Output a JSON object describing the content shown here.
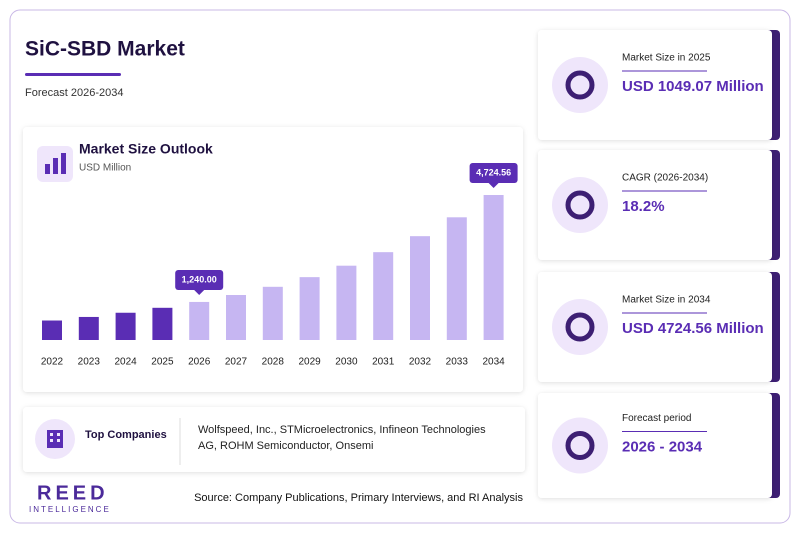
{
  "header": {
    "title": "SiC-SBD Market",
    "subtitle": "Forecast 2026-2034"
  },
  "chart_data": {
    "type": "bar",
    "title": "Market Size Outlook",
    "subtitle": "USD Million",
    "categories": [
      "2022",
      "2023",
      "2024",
      "2025",
      "2026",
      "2027",
      "2028",
      "2029",
      "2030",
      "2031",
      "2032",
      "2033",
      "2034"
    ],
    "values": [
      635,
      751,
      888,
      1049.07,
      1240,
      1466,
      1733,
      2048,
      2421,
      2862,
      3383,
      3998,
      4724.56
    ],
    "value_labels": [
      null,
      null,
      null,
      null,
      "1,240.00",
      null,
      null,
      null,
      null,
      null,
      null,
      null,
      "4,724.56"
    ],
    "colors": [
      "#5a2db4",
      "#5a2db4",
      "#5a2db4",
      "#5a2db4",
      "#c6b6f2",
      "#c6b6f2",
      "#c6b6f2",
      "#c6b6f2",
      "#c6b6f2",
      "#c6b6f2",
      "#c6b6f2",
      "#c6b6f2",
      "#c6b6f2"
    ],
    "label_color": "#5a2db4"
  },
  "cards": [
    {
      "label": "Market Size in 2025",
      "value": "USD 1049.07 Million"
    },
    {
      "label": "CAGR (2026-2034)",
      "value": "18.2%"
    },
    {
      "label": "Market Size in 2034",
      "value": "USD 4724.56 Million"
    },
    {
      "label": "Forecast period",
      "value": "2026 - 2034"
    }
  ],
  "companies": {
    "label": "Top Companies",
    "text_line1": "Wolfspeed, Inc., STMicroelectronics, Infineon Technologies",
    "text_line2": "AG, ROHM Semiconductor, Onsemi"
  },
  "source": "Source: Company Publications, Primary Interviews, and RI Analysis",
  "logo": {
    "name": "REED",
    "tagline": "INTELLIGENCE"
  }
}
